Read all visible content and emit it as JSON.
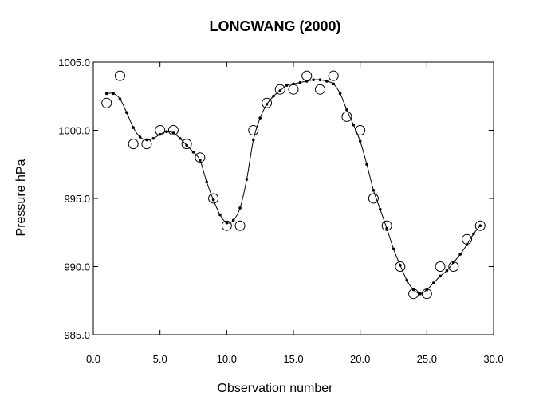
{
  "chart_data": {
    "type": "scatter",
    "title": "LONGWANG (2000)",
    "xlabel": "Observation number",
    "ylabel": "Pressure hPa",
    "xlim": [
      0,
      30
    ],
    "ylim": [
      985,
      1005
    ],
    "xticks": [
      "0.0",
      "5.0",
      "10.0",
      "15.0",
      "20.0",
      "25.0",
      "30.0"
    ],
    "yticks": [
      "985.0",
      "990.0",
      "995.0",
      "1000.0",
      "1005.0"
    ],
    "grid": false,
    "legend": "none",
    "series": [
      {
        "marker": "open-circle",
        "x": [
          1,
          2,
          3,
          4,
          5,
          6,
          7,
          8,
          9,
          10,
          11,
          12,
          13,
          14,
          15,
          16,
          17,
          18,
          19,
          20,
          21,
          22,
          23,
          24,
          25,
          26,
          27,
          28,
          29
        ],
        "y": [
          1002,
          1004,
          999,
          999,
          1000,
          1000,
          999,
          998,
          995,
          993,
          993,
          1000,
          1002,
          1003,
          1003,
          1004,
          1003,
          1004,
          1001,
          1000,
          995,
          993,
          990,
          988,
          988,
          990,
          990,
          992,
          993
        ]
      },
      {
        "marker": "smoothed-line-with-dots",
        "x": [
          1,
          1.5,
          2,
          2.5,
          3,
          3.5,
          4,
          4.5,
          5,
          5.5,
          6,
          6.5,
          7,
          7.5,
          8,
          8.5,
          9,
          9.5,
          10,
          10.5,
          11,
          11.5,
          12,
          12.5,
          13,
          13.5,
          14,
          14.5,
          15,
          15.5,
          16,
          16.5,
          17,
          17.5,
          18,
          18.5,
          19,
          19.5,
          20,
          20.5,
          21,
          21.5,
          22,
          22.5,
          23,
          23.5,
          24,
          24.5,
          25,
          25.5,
          26,
          26.5,
          27,
          27.5,
          28,
          28.5,
          29
        ],
        "y": [
          1002.7,
          1002.7,
          1002.3,
          1001.3,
          1000.2,
          999.5,
          999.3,
          999.4,
          999.7,
          999.9,
          999.8,
          999.4,
          998.9,
          998.4,
          997.8,
          996.2,
          994.9,
          993.8,
          993.2,
          993.4,
          994.3,
          996.4,
          999.3,
          1000.9,
          1001.9,
          1002.5,
          1002.9,
          1003.3,
          1003.4,
          1003.5,
          1003.6,
          1003.7,
          1003.7,
          1003.6,
          1003.4,
          1002.7,
          1001.5,
          1000.4,
          999.2,
          997.5,
          995.6,
          994.2,
          992.8,
          991.3,
          990.1,
          989.0,
          988.3,
          988.0,
          988.3,
          988.8,
          989.3,
          989.7,
          990.3,
          990.9,
          991.6,
          992.4,
          993.0
        ]
      }
    ]
  }
}
